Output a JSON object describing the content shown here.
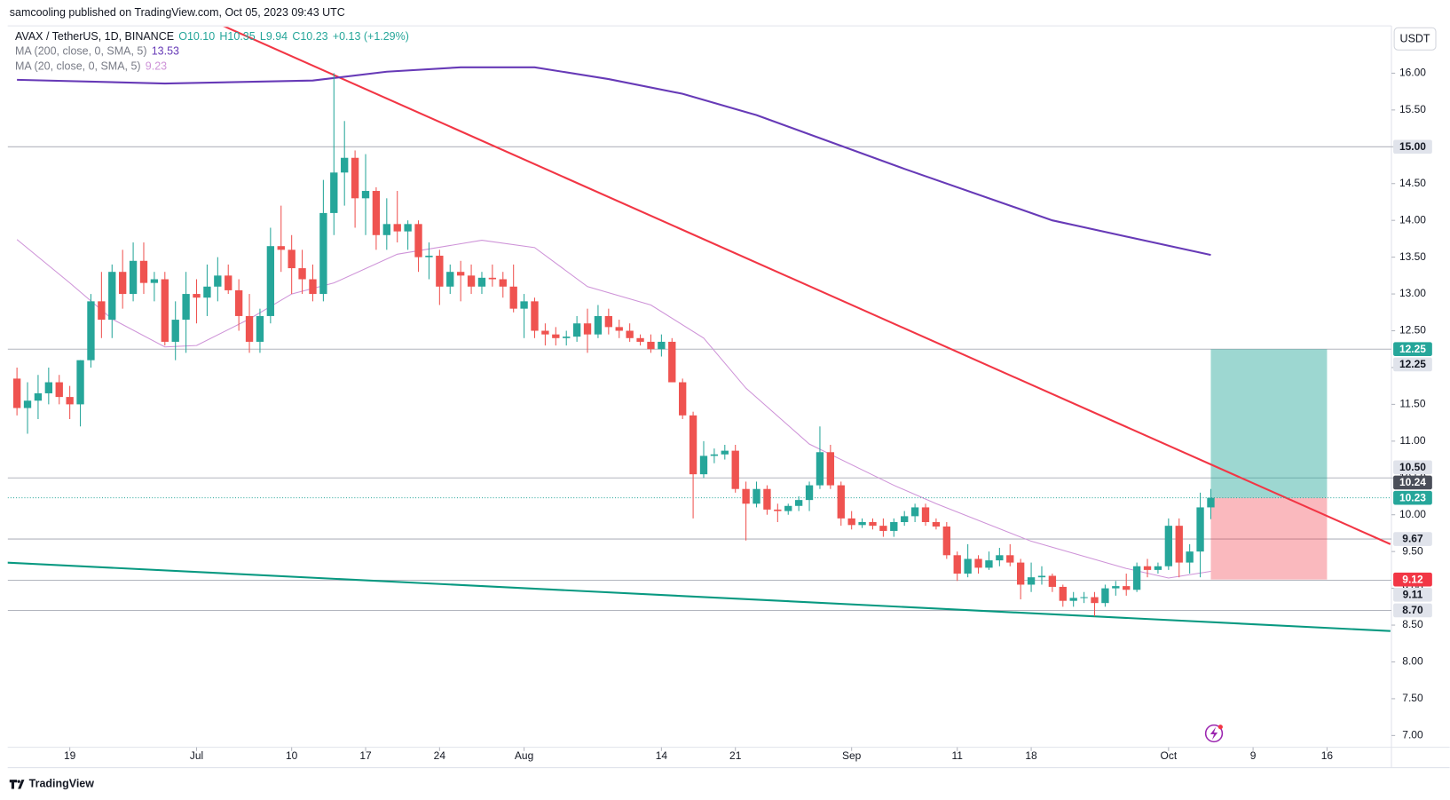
{
  "header": {
    "publisher": "samcooling published on TradingView.com, Oct 05, 2023 09:43 UTC",
    "currency": "USDT",
    "brand": "TradingView"
  },
  "chart_data": {
    "type": "candlestick",
    "title": "AVAX / TetherUS, 1D, BINANCE",
    "last_ohlc": [
      "O10.10",
      "H10.35",
      "L9.94",
      "C10.23"
    ],
    "change": "+0.13 (+1.29%)",
    "up_color": "#26a69a",
    "down_color": "#ef5350",
    "x": [
      "2023-06-14",
      "2023-06-15",
      "2023-06-16",
      "2023-06-17",
      "2023-06-18",
      "2023-06-19",
      "2023-06-20",
      "2023-06-21",
      "2023-06-22",
      "2023-06-23",
      "2023-06-24",
      "2023-06-25",
      "2023-06-26",
      "2023-06-27",
      "2023-06-28",
      "2023-06-29",
      "2023-06-30",
      "2023-07-01",
      "2023-07-02",
      "2023-07-03",
      "2023-07-04",
      "2023-07-05",
      "2023-07-06",
      "2023-07-07",
      "2023-07-08",
      "2023-07-09",
      "2023-07-10",
      "2023-07-11",
      "2023-07-12",
      "2023-07-13",
      "2023-07-14",
      "2023-07-15",
      "2023-07-16",
      "2023-07-17",
      "2023-07-18",
      "2023-07-19",
      "2023-07-20",
      "2023-07-21",
      "2023-07-22",
      "2023-07-23",
      "2023-07-24",
      "2023-07-25",
      "2023-07-26",
      "2023-07-27",
      "2023-07-28",
      "2023-07-29",
      "2023-07-30",
      "2023-07-31",
      "2023-08-01",
      "2023-08-02",
      "2023-08-03",
      "2023-08-04",
      "2023-08-05",
      "2023-08-06",
      "2023-08-07",
      "2023-08-08",
      "2023-08-09",
      "2023-08-10",
      "2023-08-11",
      "2023-08-12",
      "2023-08-13",
      "2023-08-14",
      "2023-08-15",
      "2023-08-16",
      "2023-08-17",
      "2023-08-18",
      "2023-08-19",
      "2023-08-20",
      "2023-08-21",
      "2023-08-22",
      "2023-08-23",
      "2023-08-24",
      "2023-08-25",
      "2023-08-26",
      "2023-08-27",
      "2023-08-28",
      "2023-08-29",
      "2023-08-30",
      "2023-08-31",
      "2023-09-01",
      "2023-09-02",
      "2023-09-03",
      "2023-09-04",
      "2023-09-05",
      "2023-09-06",
      "2023-09-07",
      "2023-09-08",
      "2023-09-09",
      "2023-09-10",
      "2023-09-11",
      "2023-09-12",
      "2023-09-13",
      "2023-09-14",
      "2023-09-15",
      "2023-09-16",
      "2023-09-17",
      "2023-09-18",
      "2023-09-19",
      "2023-09-20",
      "2023-09-21",
      "2023-09-22",
      "2023-09-23",
      "2023-09-24",
      "2023-09-25",
      "2023-09-26",
      "2023-09-27",
      "2023-09-28",
      "2023-09-29",
      "2023-09-30",
      "2023-10-01",
      "2023-10-02",
      "2023-10-03",
      "2023-10-04",
      "2023-10-05"
    ],
    "open": [
      11.85,
      11.45,
      11.55,
      11.65,
      11.8,
      11.6,
      11.5,
      12.1,
      12.9,
      12.65,
      13.3,
      13.0,
      13.45,
      13.15,
      13.2,
      12.35,
      12.65,
      13.0,
      12.95,
      13.1,
      13.25,
      13.05,
      12.7,
      12.35,
      12.7,
      13.65,
      13.6,
      13.35,
      13.2,
      13.0,
      14.1,
      14.65,
      14.85,
      14.3,
      14.4,
      13.8,
      13.95,
      13.85,
      13.95,
      13.5,
      13.52,
      13.1,
      13.3,
      13.25,
      13.1,
      13.22,
      13.2,
      13.1,
      12.8,
      12.9,
      12.5,
      12.45,
      12.4,
      12.42,
      12.6,
      12.45,
      12.7,
      12.55,
      12.5,
      12.4,
      12.35,
      12.25,
      12.35,
      11.8,
      11.35,
      10.55,
      10.8,
      10.82,
      10.87,
      10.35,
      10.15,
      10.35,
      10.07,
      10.05,
      10.12,
      10.2,
      10.4,
      10.85,
      10.4,
      9.95,
      9.86,
      9.9,
      9.85,
      9.78,
      9.9,
      9.98,
      10.1,
      9.9,
      9.84,
      9.45,
      9.2,
      9.4,
      9.28,
      9.38,
      9.45,
      9.35,
      9.05,
      9.15,
      9.17,
      9.02,
      8.83,
      8.87,
      8.88,
      8.8,
      9.0,
      9.03,
      8.98,
      9.3,
      9.25,
      9.3,
      9.85,
      9.35,
      9.5,
      10.1
    ],
    "high": [
      12.0,
      11.8,
      11.9,
      12.0,
      11.9,
      11.75,
      12.1,
      13.0,
      13.3,
      13.4,
      13.6,
      13.7,
      13.7,
      13.3,
      13.3,
      12.9,
      13.3,
      13.2,
      13.4,
      13.5,
      13.4,
      13.2,
      13.0,
      12.8,
      13.9,
      14.2,
      13.8,
      13.6,
      13.4,
      14.55,
      16.0,
      15.35,
      14.95,
      14.9,
      14.45,
      14.3,
      14.4,
      14.0,
      14.0,
      13.7,
      13.6,
      13.4,
      13.45,
      13.4,
      13.3,
      13.4,
      13.3,
      13.4,
      13.0,
      12.95,
      12.6,
      12.55,
      12.5,
      12.7,
      12.8,
      12.85,
      12.8,
      12.65,
      12.6,
      12.45,
      12.45,
      12.45,
      12.4,
      11.85,
      11.4,
      11.0,
      10.9,
      10.95,
      10.95,
      10.45,
      10.45,
      10.4,
      10.15,
      10.15,
      10.25,
      10.45,
      11.2,
      10.95,
      10.45,
      10.05,
      9.95,
      9.95,
      9.95,
      9.95,
      10.05,
      10.15,
      10.15,
      9.95,
      9.9,
      9.5,
      9.6,
      9.45,
      9.5,
      9.55,
      9.6,
      9.4,
      9.35,
      9.3,
      9.2,
      9.05,
      8.95,
      8.95,
      8.95,
      9.05,
      9.1,
      9.2,
      9.35,
      9.4,
      9.35,
      9.95,
      9.95,
      9.6,
      10.3,
      10.35
    ],
    "low": [
      11.35,
      11.1,
      11.3,
      11.5,
      11.5,
      11.3,
      11.2,
      12.0,
      12.4,
      12.4,
      12.8,
      12.9,
      13.0,
      12.9,
      12.3,
      12.1,
      12.2,
      12.6,
      12.7,
      12.9,
      13.0,
      12.5,
      12.2,
      12.2,
      12.6,
      13.3,
      13.0,
      13.0,
      12.9,
      12.9,
      13.8,
      14.2,
      13.9,
      13.8,
      13.6,
      13.6,
      13.7,
      13.6,
      13.3,
      13.2,
      12.85,
      13.0,
      12.9,
      13.0,
      13.0,
      13.1,
      12.95,
      12.75,
      12.4,
      12.4,
      12.3,
      12.3,
      12.3,
      12.35,
      12.2,
      12.4,
      12.45,
      12.4,
      12.35,
      12.3,
      12.2,
      12.15,
      11.8,
      11.3,
      9.95,
      10.5,
      10.7,
      10.75,
      10.3,
      9.65,
      10.1,
      10.0,
      9.9,
      10.0,
      10.05,
      10.05,
      10.35,
      10.35,
      9.85,
      9.8,
      9.82,
      9.8,
      9.7,
      9.7,
      9.85,
      9.9,
      9.85,
      9.8,
      9.4,
      9.1,
      9.15,
      9.2,
      9.25,
      9.3,
      9.3,
      8.85,
      8.95,
      9.05,
      8.95,
      8.75,
      8.75,
      8.8,
      8.62,
      8.75,
      8.9,
      8.9,
      8.95,
      9.15,
      9.2,
      9.25,
      9.15,
      9.2,
      9.15,
      9.94
    ],
    "close": [
      11.45,
      11.55,
      11.65,
      11.8,
      11.6,
      11.5,
      12.1,
      12.9,
      12.65,
      13.3,
      13.0,
      13.45,
      13.15,
      13.2,
      12.35,
      12.65,
      13.0,
      12.95,
      13.1,
      13.25,
      13.05,
      12.7,
      12.35,
      12.7,
      13.65,
      13.6,
      13.35,
      13.2,
      13.0,
      14.1,
      14.65,
      14.85,
      14.3,
      14.4,
      13.8,
      13.95,
      13.85,
      13.95,
      13.5,
      13.52,
      13.1,
      13.3,
      13.25,
      13.1,
      13.22,
      13.2,
      13.1,
      12.8,
      12.9,
      12.5,
      12.45,
      12.4,
      12.42,
      12.6,
      12.45,
      12.7,
      12.55,
      12.5,
      12.4,
      12.35,
      12.25,
      12.35,
      11.8,
      11.35,
      10.55,
      10.8,
      10.82,
      10.87,
      10.35,
      10.15,
      10.35,
      10.07,
      10.05,
      10.12,
      10.2,
      10.4,
      10.85,
      10.4,
      9.95,
      9.86,
      9.9,
      9.85,
      9.78,
      9.9,
      9.98,
      10.1,
      9.9,
      9.84,
      9.45,
      9.2,
      9.4,
      9.28,
      9.38,
      9.45,
      9.35,
      9.05,
      9.15,
      9.17,
      9.02,
      8.83,
      8.87,
      8.88,
      8.8,
      9.0,
      9.03,
      8.98,
      9.3,
      9.25,
      9.3,
      9.85,
      9.35,
      9.5,
      10.1,
      10.23
    ],
    "ma_lines": [
      {
        "name": "MA (200, close, 0, SMA, 5)",
        "last": 13.53,
        "color": "#673ab7",
        "x": [
          "2023-06-14",
          "2023-06-28",
          "2023-07-12",
          "2023-07-19",
          "2023-07-26",
          "2023-08-02",
          "2023-08-09",
          "2023-08-16",
          "2023-08-23",
          "2023-09-06",
          "2023-09-20",
          "2023-10-05"
        ],
        "values": [
          15.91,
          15.86,
          15.9,
          16.02,
          16.08,
          16.08,
          15.92,
          15.72,
          15.43,
          14.7,
          14.0,
          13.53
        ]
      },
      {
        "name": "MA (20, close, 0, SMA, 5)",
        "last": 9.23,
        "color": "#ce93d8",
        "x": [
          "2023-06-14",
          "2023-06-19",
          "2023-06-23",
          "2023-06-28",
          "2023-07-01",
          "2023-07-06",
          "2023-07-10",
          "2023-07-14",
          "2023-07-20",
          "2023-07-28",
          "2023-08-02",
          "2023-08-07",
          "2023-08-13",
          "2023-08-18",
          "2023-08-22",
          "2023-08-28",
          "2023-09-05",
          "2023-09-09",
          "2023-09-18",
          "2023-09-27",
          "2023-10-01",
          "2023-10-05"
        ],
        "values": [
          13.74,
          13.15,
          12.66,
          12.28,
          12.3,
          12.66,
          13.0,
          13.15,
          13.54,
          13.73,
          13.63,
          13.1,
          12.85,
          12.4,
          11.72,
          10.96,
          10.4,
          10.15,
          9.64,
          9.27,
          9.14,
          9.23
        ]
      }
    ],
    "trendlines": [
      {
        "color": "#f23645",
        "x": [
          "2023-07-02",
          "2023-10-22"
        ],
        "values": [
          16.74,
          9.6
        ]
      },
      {
        "color": "#089981",
        "x": [
          "2023-06-13",
          "2023-10-22"
        ],
        "values": [
          9.35,
          8.42
        ]
      }
    ],
    "position": {
      "x": [
        "2023-10-05",
        "2023-10-16"
      ],
      "entry": 10.23,
      "target": 12.25,
      "stop": 9.12
    },
    "levels": [
      {
        "value": 15,
        "label": "15.00"
      },
      {
        "value": 12.25,
        "label": "12.25"
      },
      {
        "value": 10.5,
        "label": "10.50"
      },
      {
        "value": 9.67,
        "label": "9.67"
      },
      {
        "value": 9.11,
        "label": "9.11"
      },
      {
        "value": 8.7,
        "label": "8.70"
      }
    ],
    "price_tags": [
      {
        "value": 10.23,
        "label": "10.23",
        "color": "#26a69a"
      },
      {
        "value": 10.24,
        "label": "10.24",
        "color": "#4a4e59"
      },
      {
        "value": 9.12,
        "label": "9.12",
        "color": "#f23645"
      },
      {
        "value": 12.25,
        "label": "12.25",
        "color": "#26a69a"
      }
    ],
    "xlim": [
      "2023-06-13",
      "2023-10-22"
    ],
    "xticks": [
      {
        "value": "2023-06-19",
        "label": "19"
      },
      {
        "value": "2023-07-01",
        "label": "Jul"
      },
      {
        "value": "2023-07-10",
        "label": "10"
      },
      {
        "value": "2023-07-17",
        "label": "17"
      },
      {
        "value": "2023-07-24",
        "label": "24"
      },
      {
        "value": "2023-08-01",
        "label": "Aug"
      },
      {
        "value": "2023-08-14",
        "label": "14"
      },
      {
        "value": "2023-08-21",
        "label": "21"
      },
      {
        "value": "2023-09-01",
        "label": "Sep"
      },
      {
        "value": "2023-09-11",
        "label": "11"
      },
      {
        "value": "2023-09-18",
        "label": "18"
      },
      {
        "value": "2023-10-01",
        "label": "Oct"
      },
      {
        "value": "2023-10-09",
        "label": "9"
      },
      {
        "value": "2023-10-16",
        "label": "16"
      }
    ],
    "ylim": [
      6.84,
      16.63
    ],
    "yticks": [
      {
        "value": 7,
        "label": "7.00"
      },
      {
        "value": 7.5,
        "label": "7.50"
      },
      {
        "value": 8,
        "label": "8.00"
      },
      {
        "value": 8.5,
        "label": "8.50"
      },
      {
        "value": 9,
        "label": "9.00"
      },
      {
        "value": 9.5,
        "label": "9.50"
      },
      {
        "value": 10,
        "label": "10.00"
      },
      {
        "value": 10.5,
        "label": "10.50"
      },
      {
        "value": 11,
        "label": "11.00"
      },
      {
        "value": 11.5,
        "label": "11.50"
      },
      {
        "value": 12,
        "label": "12.00"
      },
      {
        "value": 12.5,
        "label": "12.50"
      },
      {
        "value": 13,
        "label": "13.00"
      },
      {
        "value": 13.5,
        "label": "13.50"
      },
      {
        "value": 14,
        "label": "14.00"
      },
      {
        "value": 14.5,
        "label": "14.50"
      },
      {
        "value": 15,
        "label": "15.00"
      },
      {
        "value": 15.5,
        "label": "15.50"
      },
      {
        "value": 16,
        "label": "16.00"
      }
    ],
    "grid": false
  }
}
